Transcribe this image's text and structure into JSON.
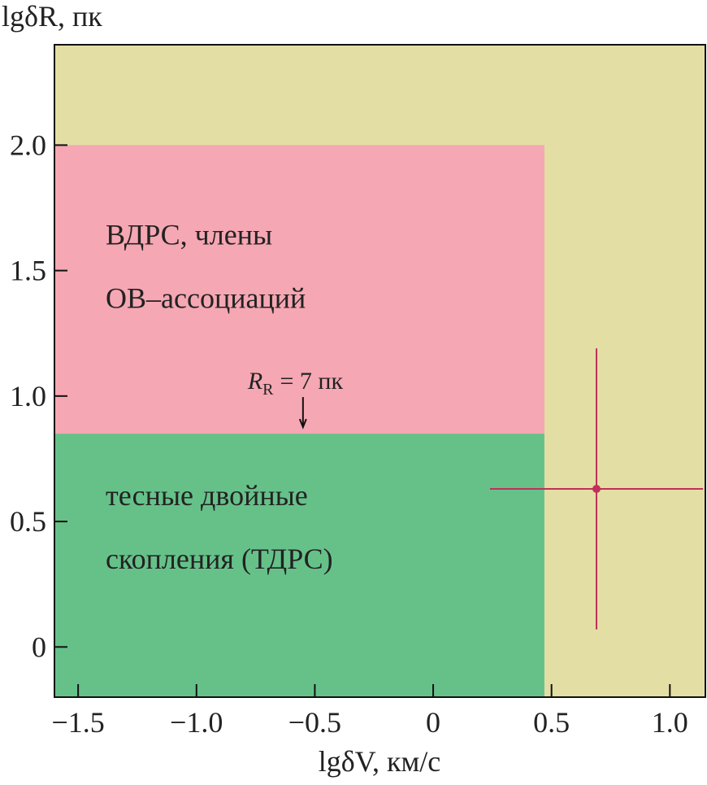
{
  "chart_data": {
    "type": "scatter",
    "y_label": "lgδR, пк",
    "x_label": "lgδV, км/с",
    "xlim": [
      -1.6,
      1.15
    ],
    "ylim": [
      -0.2,
      2.4
    ],
    "xticks": [
      {
        "value": -1.5,
        "label": "−1.5"
      },
      {
        "value": -1.0,
        "label": "−1.0"
      },
      {
        "value": -0.5,
        "label": "−0.5"
      },
      0,
      0.5,
      {
        "value": 1.0,
        "label": "1.0"
      }
    ],
    "yticks": [
      0,
      0.5,
      {
        "value": 1.0,
        "label": "1.0"
      },
      1.5,
      {
        "value": 2.0,
        "label": "2.0"
      }
    ],
    "background": "#e3dea4",
    "regions": [
      {
        "labels": [
          "ВДРС, члены",
          "ОВ–ассоциаций"
        ],
        "color": "#f5a7b3",
        "xlim": [
          -1.6,
          0.47
        ],
        "ylim": [
          0.85,
          2.0
        ]
      },
      {
        "labels": [
          "тесные двойные",
          "скопления (ТДРС)"
        ],
        "color": "#66c189",
        "xlim": [
          -1.6,
          0.47
        ],
        "ylim": [
          -0.2,
          0.85
        ]
      }
    ],
    "annotation": {
      "symbol": "R",
      "subscript": "R",
      "text": "= 7 пк",
      "x": -0.55,
      "y": 0.85
    },
    "series": [
      {
        "color": "#c0305a",
        "x": [
          0.69
        ],
        "values": [
          0.63
        ],
        "xerr": [
          0.45
        ],
        "yerr": [
          0.56
        ]
      }
    ]
  }
}
